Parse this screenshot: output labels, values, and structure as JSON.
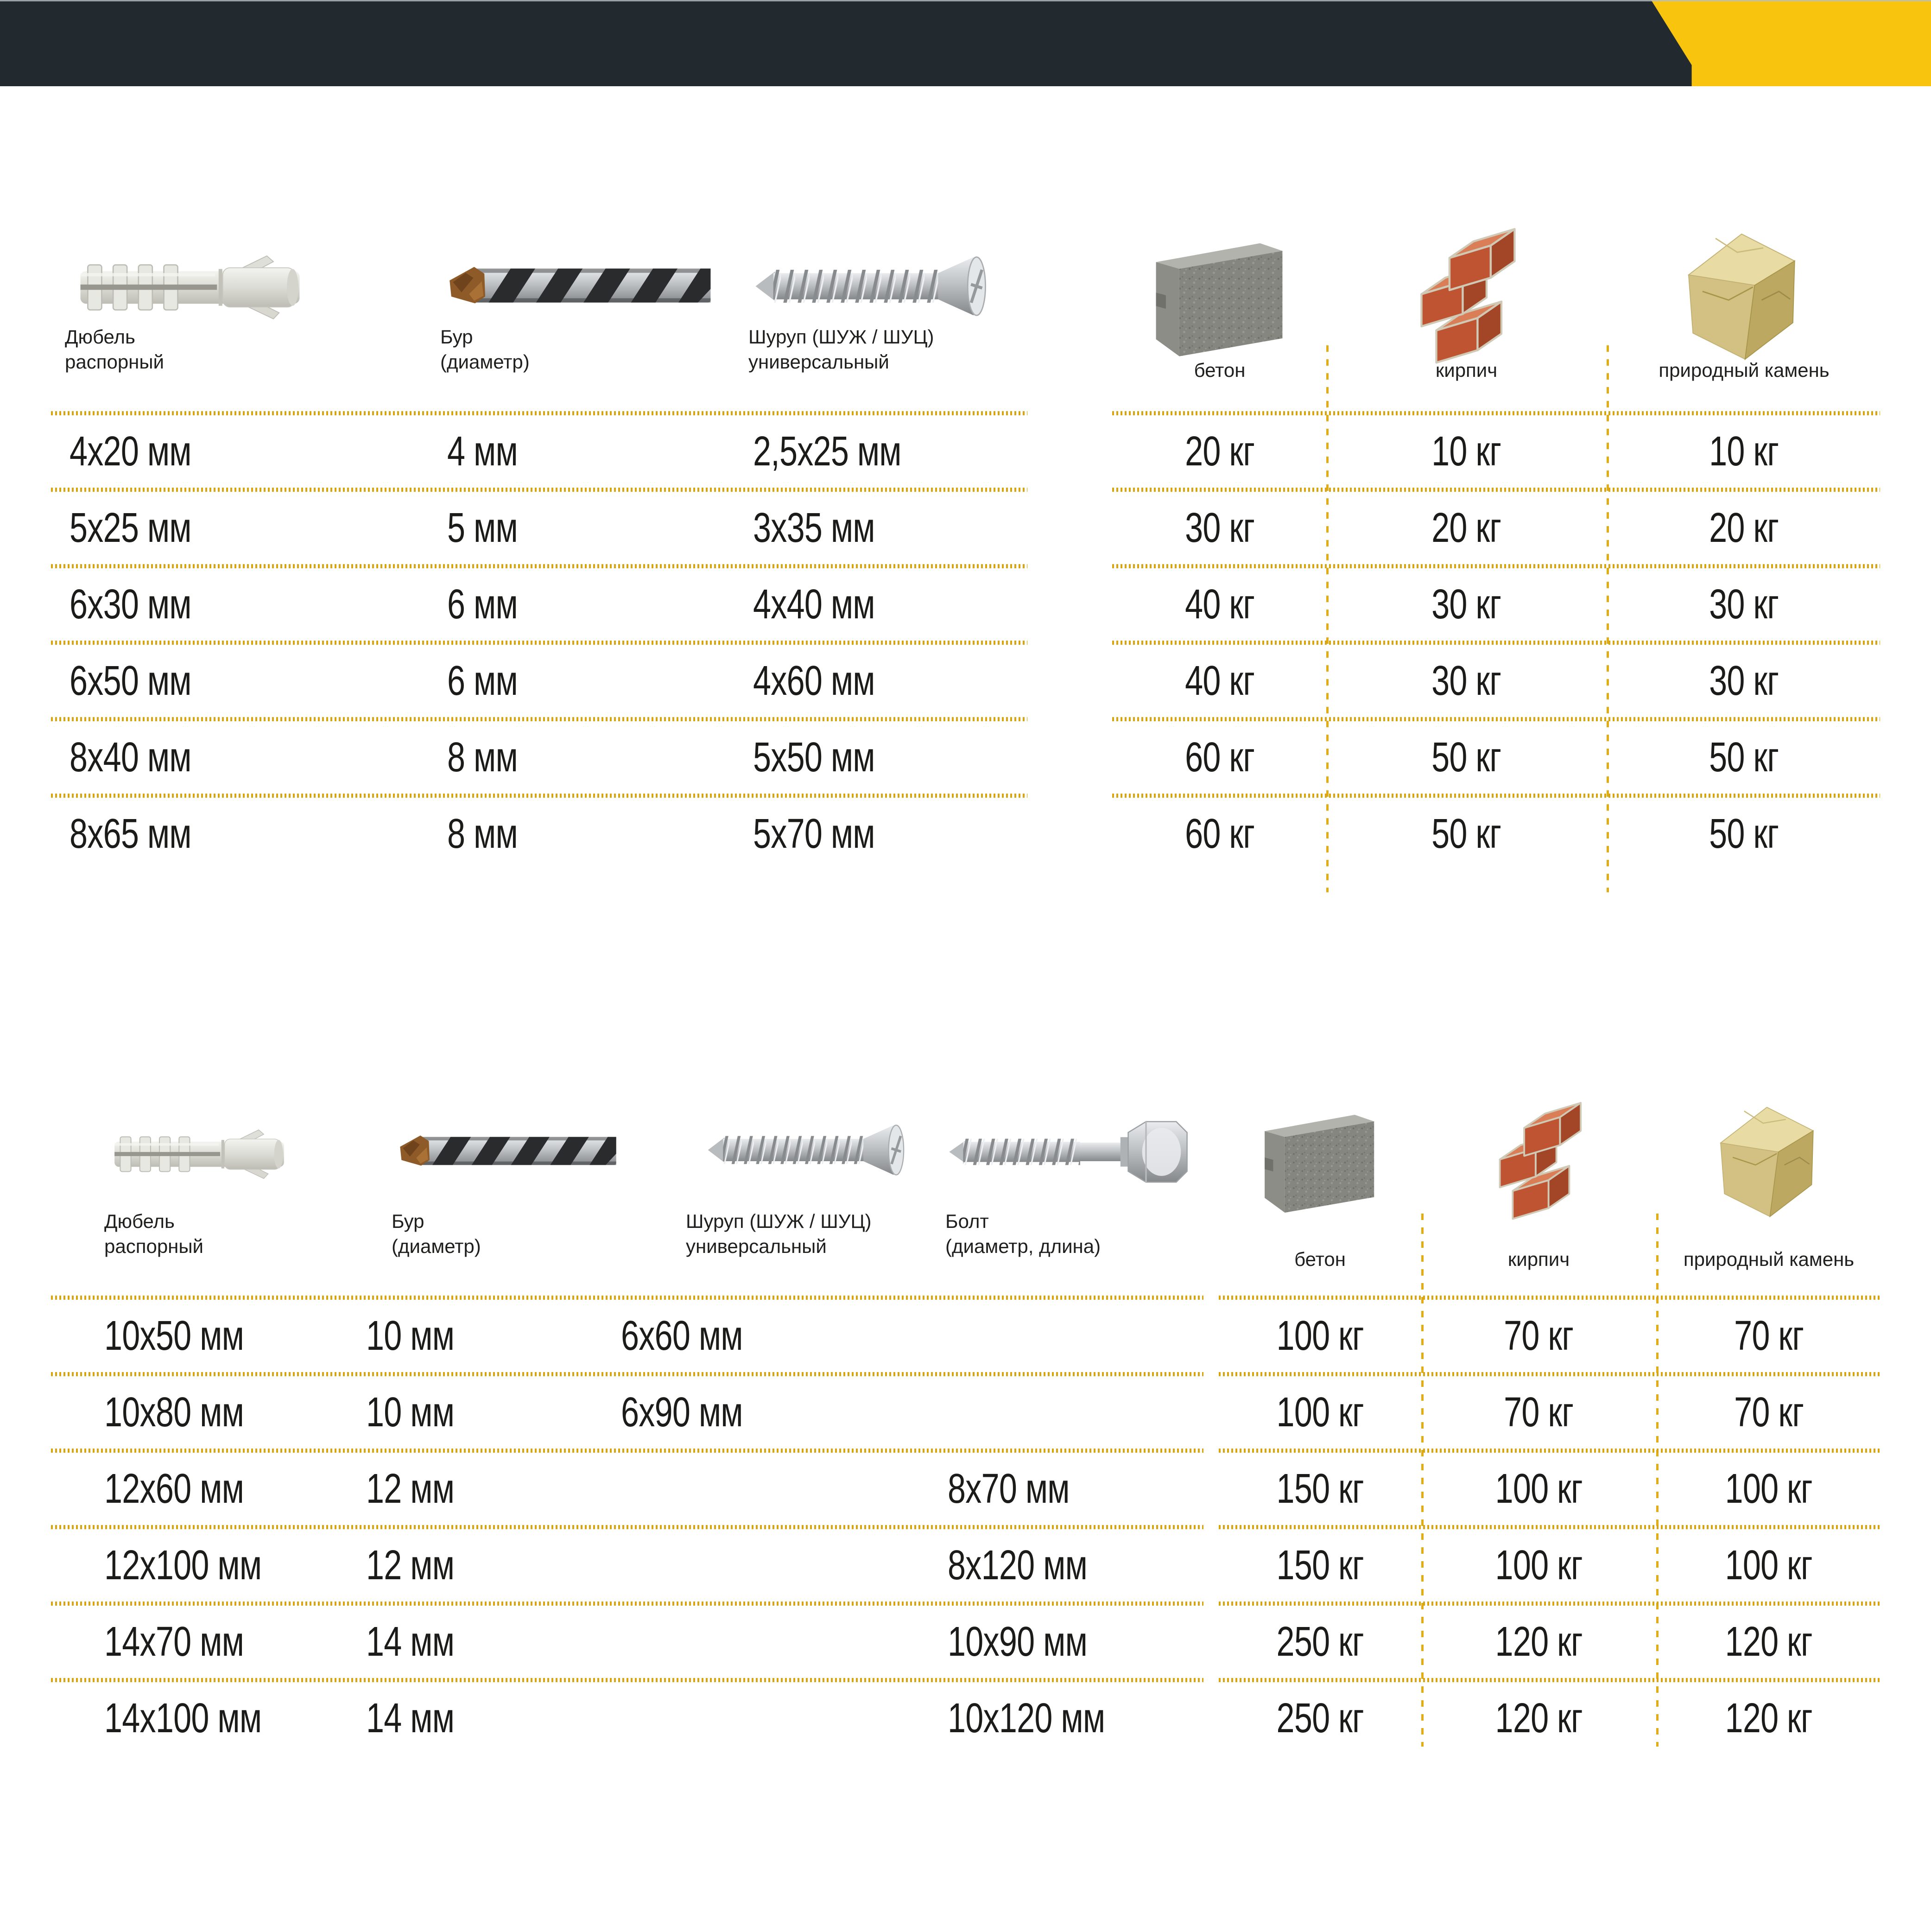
{
  "banner": {
    "bar_color": "#222A2F",
    "accent_color": "#F9C40D"
  },
  "colors": {
    "dotted_line": "#D9A40E",
    "text": "#1B1B19"
  },
  "units": {
    "size": "мм",
    "weight": "кг"
  },
  "table1": {
    "columns": [
      {
        "id": "dowel",
        "label": "Дюбель\nраспорный",
        "icon": "dowel-icon"
      },
      {
        "id": "drill",
        "label": "Бур\n(диаметр)",
        "icon": "drill-bit-icon"
      },
      {
        "id": "screw",
        "label": "Шуруп (ШУЖ / ШУЦ)\nуниверсальный",
        "icon": "screw-icon"
      },
      {
        "id": "concrete",
        "label": "бетон",
        "icon": "concrete-block-icon"
      },
      {
        "id": "brick",
        "label": "кирпич",
        "icon": "bricks-icon"
      },
      {
        "id": "stone",
        "label": "природный камень",
        "icon": "stone-icon"
      }
    ],
    "rows": [
      [
        "4x20 мм",
        "4 мм",
        "2,5x25 мм",
        "20 кг",
        "10 кг",
        "10 кг"
      ],
      [
        "5x25 мм",
        "5 мм",
        "3x35 мм",
        "30 кг",
        "20 кг",
        "20 кг"
      ],
      [
        "6x30 мм",
        "6 мм",
        "4x40 мм",
        "40 кг",
        "30 кг",
        "30 кг"
      ],
      [
        "6x50 мм",
        "6 мм",
        "4x60 мм",
        "40 кг",
        "30 кг",
        "30 кг"
      ],
      [
        "8x40 мм",
        "8 мм",
        "5x50 мм",
        "60 кг",
        "50 кг",
        "50 кг"
      ],
      [
        "8x65 мм",
        "8 мм",
        "5x70 мм",
        "60 кг",
        "50 кг",
        "50 кг"
      ]
    ]
  },
  "table2": {
    "columns": [
      {
        "id": "dowel",
        "label": "Дюбель\nраспорный",
        "icon": "dowel-icon"
      },
      {
        "id": "drill",
        "label": "Бур\n(диаметр)",
        "icon": "drill-bit-icon"
      },
      {
        "id": "screw",
        "label": "Шуруп (ШУЖ / ШУЦ)\nуниверсальный",
        "icon": "screw-icon"
      },
      {
        "id": "bolt",
        "label": "Болт\n(диаметр, длина)",
        "icon": "bolt-icon"
      },
      {
        "id": "concrete",
        "label": "бетон",
        "icon": "concrete-block-icon"
      },
      {
        "id": "brick",
        "label": "кирпич",
        "icon": "bricks-icon"
      },
      {
        "id": "stone",
        "label": "природный камень",
        "icon": "stone-icon"
      }
    ],
    "rows": [
      [
        "10x50 мм",
        "10 мм",
        "6x60 мм",
        "",
        "100 кг",
        "70 кг",
        "70 кг"
      ],
      [
        "10x80 мм",
        "10 мм",
        "6x90 мм",
        "",
        "100 кг",
        "70 кг",
        "70 кг"
      ],
      [
        "12x60 мм",
        "12 мм",
        "",
        "8x70 мм",
        "150 кг",
        "100 кг",
        "100 кг"
      ],
      [
        "12x100 мм",
        "12 мм",
        "",
        "8x120 мм",
        "150 кг",
        "100 кг",
        "100 кг"
      ],
      [
        "14x70 мм",
        "14 мм",
        "",
        "10x90 мм",
        "250 кг",
        "120 кг",
        "120 кг"
      ],
      [
        "14x100 мм",
        "14 мм",
        "",
        "10x120 мм",
        "250 кг",
        "120 кг",
        "120 кг"
      ]
    ]
  }
}
